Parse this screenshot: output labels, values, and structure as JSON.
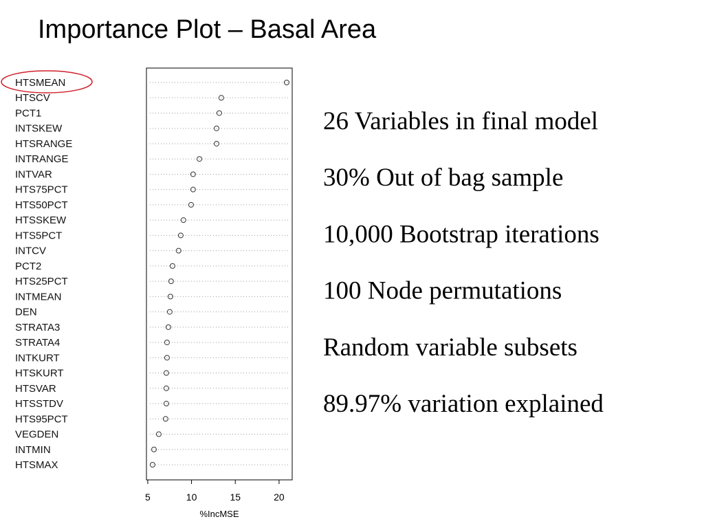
{
  "slide": {
    "title": "Importance Plot – Basal Area",
    "notes": [
      "26 Variables in final model",
      "30% Out of bag sample",
      "10,000 Bootstrap iterations",
      "100 Node permutations",
      "Random variable subsets",
      "89.97% variation explained"
    ]
  },
  "chart_data": {
    "type": "dot",
    "x_label": "%IncMSE",
    "categories": [
      "HTSMEAN",
      "HTSCV",
      "PCT1",
      "INTSKEW",
      "HTSRANGE",
      "INTRANGE",
      "INTVAR",
      "HTS75PCT",
      "HTS50PCT",
      "HTSSKEW",
      "HTS5PCT",
      "INTCV",
      "PCT2",
      "HTS25PCT",
      "INTMEAN",
      "DEN",
      "STRATA3",
      "STRATA4",
      "INTKURT",
      "HTSKURT",
      "HTSVAR",
      "HTSSTDV",
      "HTS95PCT",
      "VEGDEN",
      "INTMIN",
      "HTSMAX"
    ],
    "values": [
      20.87,
      13.4,
      13.17,
      12.86,
      12.86,
      10.9,
      10.18,
      10.18,
      9.95,
      9.08,
      8.77,
      8.53,
      7.83,
      7.67,
      7.59,
      7.51,
      7.36,
      7.2,
      7.2,
      7.12,
      7.12,
      7.12,
      7.04,
      6.26,
      5.71,
      5.55
    ],
    "xlim": [
      4.85,
      21.5
    ],
    "xticks": [
      5,
      10,
      15,
      20
    ]
  }
}
